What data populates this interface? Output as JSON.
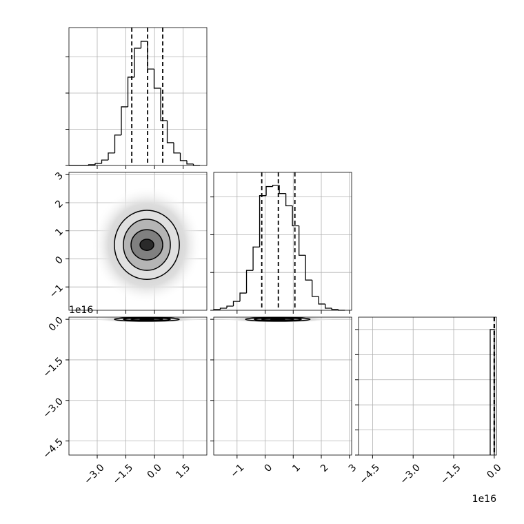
{
  "chart_data": {
    "type": "corner",
    "axes": [
      {
        "lim": [
          -4.48,
          2.74
        ],
        "ticks": [
          {
            "value": -3.0,
            "label": "−3.0"
          },
          {
            "value": -1.5,
            "label": "−1.5"
          },
          {
            "value": 0.0,
            "label": "0.0"
          },
          {
            "value": 1.5,
            "label": "1.5"
          }
        ]
      },
      {
        "lim": [
          -1.83,
          3.08
        ],
        "ticks": [
          {
            "value": -1,
            "label": "−1"
          },
          0,
          1,
          2,
          3
        ]
      },
      {
        "lim": [
          -5.02,
          0.08
        ],
        "ticks": [
          {
            "value": 0.0,
            "label": "0.0"
          },
          {
            "value": -1.5,
            "label": "−1.5"
          },
          {
            "value": -3.0,
            "label": "−3.0"
          },
          {
            "value": -4.5,
            "label": "−4.5"
          }
        ]
      }
    ],
    "offset_labels": [
      "1e16",
      "1e16"
    ],
    "histograms": [
      {
        "bins": [
          -4.48,
          -4.137,
          -3.794,
          -3.451,
          -3.108,
          -2.765,
          -2.422,
          -2.079,
          -1.736,
          -1.393,
          -1.05,
          -0.707,
          -0.364,
          -0.021,
          0.322,
          0.665,
          1.008,
          1.351,
          1.694,
          2.037,
          2.38
        ],
        "counts": [
          0,
          0,
          0,
          4,
          11,
          30,
          69,
          168,
          324,
          488,
          648,
          686,
          533,
          427,
          248,
          126,
          69,
          27,
          8,
          0
        ],
        "ylim": [
          0,
          762
        ],
        "yticks": [
          0,
          200,
          400,
          600
        ],
        "quantiles": [
          -1.19,
          -0.36,
          0.43
        ]
      },
      {
        "bins": [
          -1.83,
          -1.597,
          -1.363,
          -1.13,
          -0.896,
          -0.663,
          -0.429,
          -0.196,
          0.038,
          0.272,
          0.505,
          0.739,
          0.972,
          1.206,
          1.439,
          1.673,
          1.906,
          2.14,
          2.373,
          2.607,
          2.84
        ],
        "counts": [
          4,
          11,
          22,
          47,
          91,
          211,
          335,
          607,
          655,
          662,
          618,
          553,
          447,
          291,
          160,
          73,
          33,
          11,
          4,
          0
        ],
        "ylim": [
          0,
          730
        ],
        "yticks": [
          0,
          200,
          400,
          600
        ],
        "quantiles": [
          -0.12,
          0.47,
          1.06
        ]
      },
      {
        "bins": [
          -0.15,
          0.0
        ],
        "counts": [
          10000
        ],
        "ylim": [
          0,
          10986
        ],
        "yticks": [
          0,
          2000,
          4000,
          6000,
          8000,
          10000
        ],
        "quantiles": [
          -0.005,
          0.0,
          0.005
        ]
      }
    ],
    "contours": [
      {
        "x": 0,
        "y": 1,
        "center": [
          -0.4,
          0.5
        ],
        "rx": [
          1.7,
          1.23,
          0.83,
          0.36
        ],
        "ry": [
          1.23,
          0.91,
          0.54,
          0.2
        ]
      },
      {
        "x": 0,
        "y": 2,
        "center": [
          -0.4,
          0.0
        ],
        "rx": [
          1.7,
          1.23,
          0.83,
          0.36
        ],
        "ry": [
          0.07,
          0.05,
          0.035,
          0.02
        ]
      },
      {
        "x": 1,
        "y": 2,
        "center": [
          0.45,
          0.0
        ],
        "rx": [
          1.15,
          0.84,
          0.57,
          0.25
        ],
        "ry": [
          0.07,
          0.05,
          0.035,
          0.02
        ]
      }
    ],
    "grid": true
  }
}
